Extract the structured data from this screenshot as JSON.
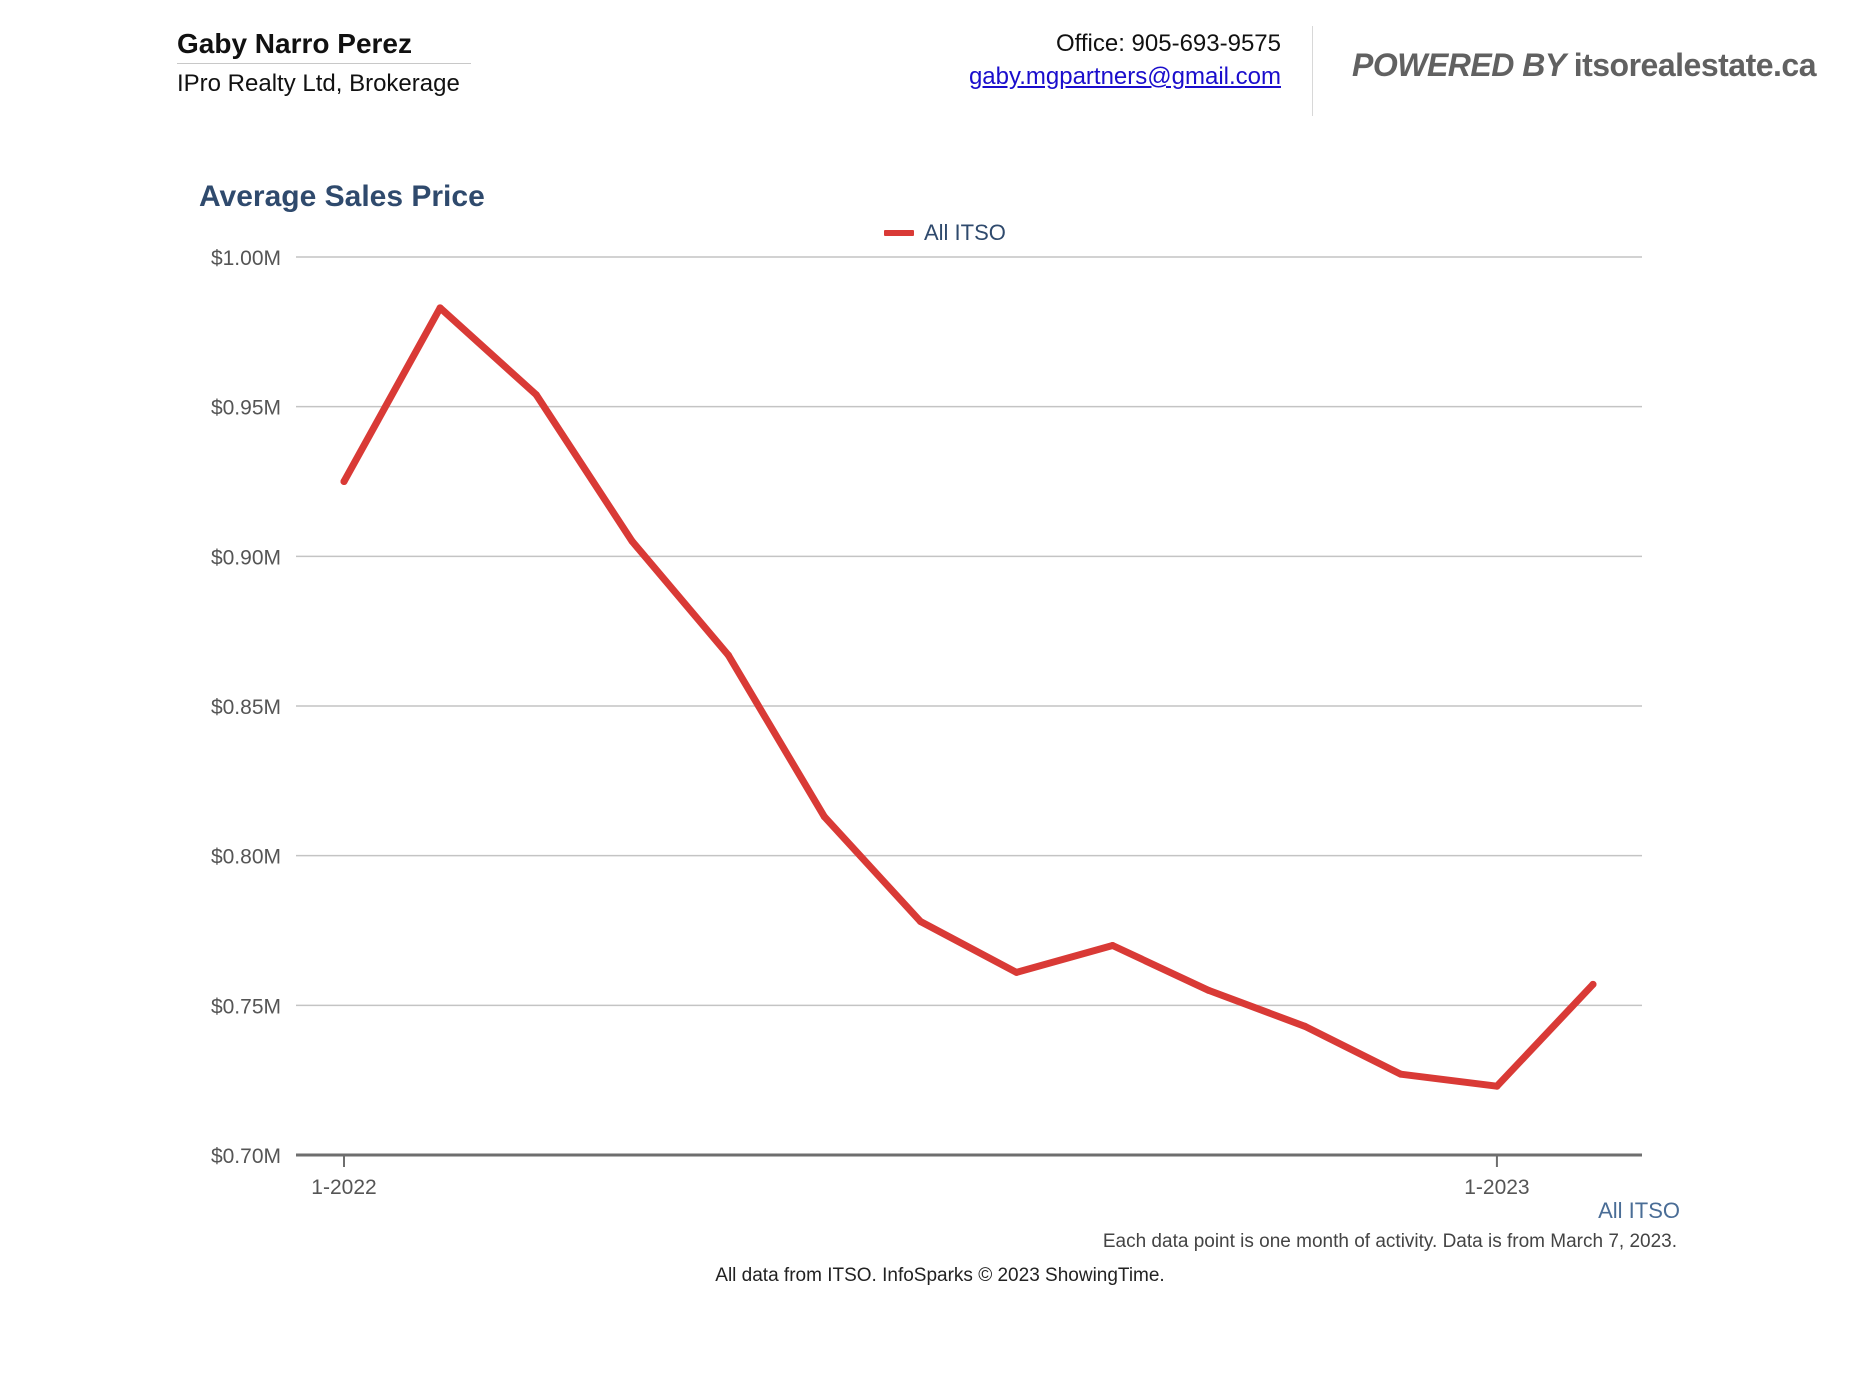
{
  "header": {
    "agent_name": "Gaby Narro Perez",
    "company": "IPro Realty Ltd, Brokerage",
    "office": "Office: 905-693-9575",
    "email": "gaby.mgpartners@gmail.com",
    "powered_by": "POWERED BY",
    "site": "itsorealestate.ca"
  },
  "chart_data": {
    "type": "line",
    "title": "Average Sales Price",
    "xlabel": "",
    "ylabel": "",
    "x": [
      "1-2022",
      "2-2022",
      "3-2022",
      "4-2022",
      "5-2022",
      "6-2022",
      "7-2022",
      "8-2022",
      "9-2022",
      "10-2022",
      "11-2022",
      "12-2022",
      "1-2023",
      "2-2023"
    ],
    "x_tick_labels": [
      "1-2022",
      "1-2023"
    ],
    "y_tick_labels": [
      "$1.00M",
      "$0.95M",
      "$0.90M",
      "$0.85M",
      "$0.80M",
      "$0.75M",
      "$0.70M"
    ],
    "y_ticks": [
      1.0,
      0.95,
      0.9,
      0.85,
      0.8,
      0.75,
      0.7
    ],
    "ylim": [
      0.7,
      1.0
    ],
    "grid": true,
    "legend_position": "top-center",
    "series": [
      {
        "name": "All ITSO",
        "color": "#d93a36",
        "values": [
          0.925,
          0.983,
          0.954,
          0.905,
          0.867,
          0.813,
          0.778,
          0.761,
          0.77,
          0.755,
          0.743,
          0.727,
          0.723,
          0.757
        ]
      }
    ]
  },
  "footer": {
    "series_label": "All ITSO",
    "note": "Each data point is one month of activity. Data is from March 7, 2023.",
    "copyright": "All data from ITSO. InfoSparks © 2023 ShowingTime."
  }
}
